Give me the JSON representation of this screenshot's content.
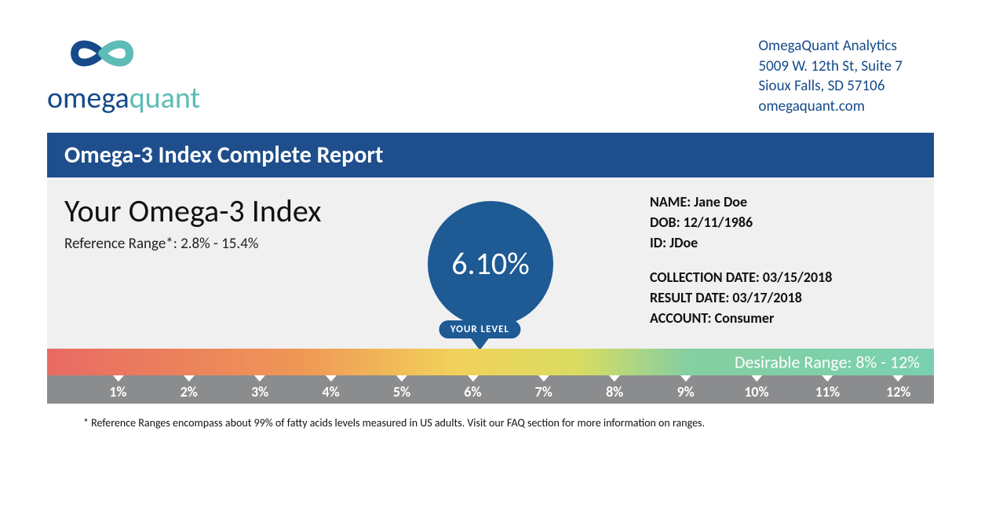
{
  "company": {
    "logo_word_a": "omega",
    "logo_word_b": "quant",
    "name": "OmegaQuant Analytics",
    "addr1": "5009 W. 12th St, Suite 7",
    "addr2": "Sioux Falls, SD 57106",
    "site": "omegaquant.com",
    "brand_blue": "#164a8a",
    "brand_teal": "#5dbcb6"
  },
  "report": {
    "title": "Omega-3 Index Complete Report",
    "title_bar_bg": "#1e4e8c",
    "panel_bg": "#f0f0f0"
  },
  "result": {
    "heading": "Your Omega-3 Index",
    "reference_range_label": "Reference Range*: 2.8% - 15.4%",
    "value_text": "6.10%",
    "value_numeric": 6.1,
    "circle_bg": "#1e5a94",
    "your_level_label": "YOUR LEVEL"
  },
  "patient": {
    "name_line": "NAME: Jane Doe",
    "dob_line": "DOB: 12/11/1986",
    "id_line": "ID: JDoe",
    "collection_line": "COLLECTION DATE: 03/15/2018",
    "result_line": "RESULT DATE: 03/17/2018",
    "account_line": "ACCOUNT: Consumer"
  },
  "scale": {
    "min": 0,
    "max": 12.5,
    "gradient_stops": [
      {
        "pct": 0,
        "color": "#e86a63"
      },
      {
        "pct": 28,
        "color": "#ef9656"
      },
      {
        "pct": 46,
        "color": "#f2d15a"
      },
      {
        "pct": 60,
        "color": "#d9dc61"
      },
      {
        "pct": 72,
        "color": "#85cfa0"
      },
      {
        "pct": 100,
        "color": "#79d0b0"
      }
    ],
    "desirable_label": "Desirable Range: 8% - 12%",
    "tick_row_bg": "#8b8c8e",
    "ticks": [
      {
        "v": 1,
        "label": "1%"
      },
      {
        "v": 2,
        "label": "2%"
      },
      {
        "v": 3,
        "label": "3%"
      },
      {
        "v": 4,
        "label": "4%"
      },
      {
        "v": 5,
        "label": "5%"
      },
      {
        "v": 6,
        "label": "6%"
      },
      {
        "v": 7,
        "label": "7%"
      },
      {
        "v": 8,
        "label": "8%"
      },
      {
        "v": 9,
        "label": "9%"
      },
      {
        "v": 10,
        "label": "10%"
      },
      {
        "v": 11,
        "label": "11%"
      },
      {
        "v": 12,
        "label": "12%"
      }
    ]
  },
  "footnote": "* Reference Ranges encompass about 99% of fatty acids levels measured in US adults. Visit our FAQ section for more information on ranges."
}
